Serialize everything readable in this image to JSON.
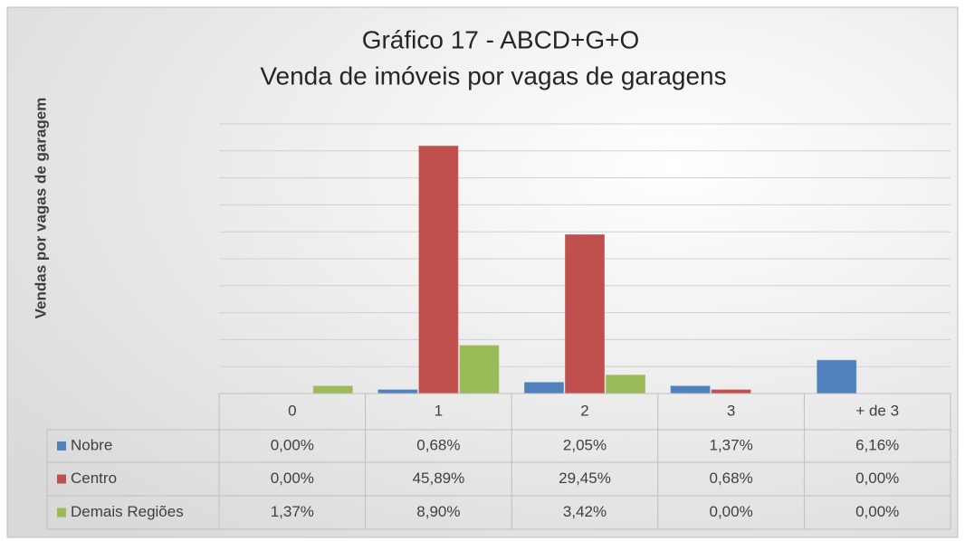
{
  "chart_data": {
    "type": "bar",
    "title": "Gráfico 17 - ABCD+G+O",
    "subtitle": "Venda de imóveis por vagas de garagens",
    "y_label": "Vendas por vagas de garagem",
    "categories": [
      "0",
      "1",
      "2",
      "3",
      "+ de 3"
    ],
    "series": [
      {
        "name": "Nobre",
        "color": "#4f81bd",
        "values": [
          0,
          0.68,
          2.05,
          1.37,
          6.16
        ],
        "value_labels": [
          "0,00%",
          "0,68%",
          "2,05%",
          "1,37%",
          "6,16%"
        ]
      },
      {
        "name": "Centro",
        "color": "#c0504d",
        "values": [
          0,
          45.89,
          29.45,
          0.68,
          0
        ],
        "value_labels": [
          "0,00%",
          "45,89%",
          "29,45%",
          "0,68%",
          "0,00%"
        ]
      },
      {
        "name": "Demais Regiões",
        "color": "#9bbb59",
        "values": [
          1.37,
          8.9,
          3.42,
          0,
          0
        ],
        "value_labels": [
          "1,37%",
          "8,90%",
          "3,42%",
          "0,00%",
          "0,00%"
        ]
      }
    ],
    "ylim": [
      0,
      50
    ],
    "yticks": [
      0,
      5,
      10,
      15,
      20,
      25,
      30,
      35,
      40,
      45,
      50
    ],
    "grid": true
  }
}
